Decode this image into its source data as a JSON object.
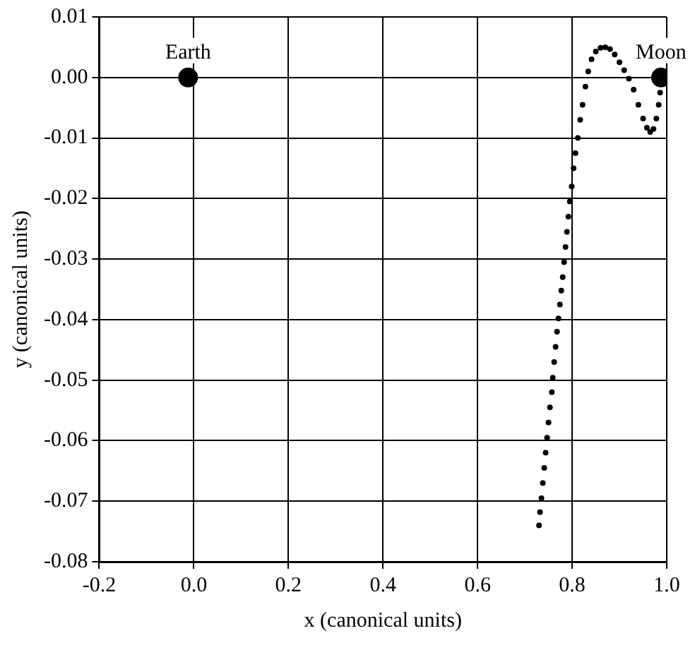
{
  "chart_data": {
    "type": "scatter",
    "xlabel": "x (canonical units)",
    "ylabel": "y (canonical units)",
    "xlim": [
      -0.2,
      1.0
    ],
    "xticks": [
      -0.2,
      {
        "value": 0,
        "label": "0.0"
      },
      0.2,
      0.4,
      0.6,
      0.8,
      {
        "value": 1,
        "label": "1.0"
      }
    ],
    "ylim": [
      -0.08,
      0.01
    ],
    "yticks": [
      {
        "value": 0.01,
        "label": "0.01"
      },
      {
        "value": 0,
        "label": "0.00"
      },
      {
        "value": -0.01,
        "label": "-0.01"
      },
      {
        "value": -0.02,
        "label": "-0.02"
      },
      {
        "value": -0.03,
        "label": "-0.03"
      },
      {
        "value": -0.04,
        "label": "-0.04"
      },
      {
        "value": -0.05,
        "label": "-0.05"
      },
      {
        "value": -0.06,
        "label": "-0.06"
      },
      {
        "value": -0.07,
        "label": "-0.07"
      },
      {
        "value": -0.08,
        "label": "-0.08"
      }
    ],
    "grid": true,
    "legend": false,
    "marker": "circle",
    "series": [
      {
        "name": "Earth",
        "color": "#000000",
        "x": [
          -0.012
        ],
        "values": [
          0
        ]
      },
      {
        "name": "Moon",
        "color": "#000000",
        "x": [
          0.988
        ],
        "values": [
          0
        ]
      },
      {
        "color": "#000000",
        "x": [
          0.73,
          0.732,
          0.735,
          0.738,
          0.741,
          0.744,
          0.747,
          0.75,
          0.753,
          0.757,
          0.759,
          0.762,
          0.765,
          0.768,
          0.771,
          0.774,
          0.777,
          0.78,
          0.783,
          0.786,
          0.789,
          0.792,
          0.795,
          0.799,
          0.803,
          0.807,
          0.812,
          0.817,
          0.822,
          0.828,
          0.834,
          0.841,
          0.85,
          0.86,
          0.87,
          0.88,
          0.89,
          0.9,
          0.91,
          0.92,
          0.93,
          0.94,
          0.95,
          0.958,
          0.965,
          0.972,
          0.978,
          0.983,
          0.986
        ],
        "values": [
          -0.074,
          -0.0718,
          -0.0695,
          -0.067,
          -0.0645,
          -0.062,
          -0.0595,
          -0.057,
          -0.0545,
          -0.052,
          -0.0496,
          -0.047,
          -0.0445,
          -0.042,
          -0.0398,
          -0.0375,
          -0.0352,
          -0.033,
          -0.0305,
          -0.028,
          -0.0255,
          -0.023,
          -0.0205,
          -0.018,
          -0.015,
          -0.0125,
          -0.01,
          -0.007,
          -0.0045,
          -0.0015,
          0.001,
          0.003,
          0.0043,
          0.0049,
          0.005,
          0.0047,
          0.0038,
          0.0025,
          0.0012,
          -0.0002,
          -0.002,
          -0.0045,
          -0.0068,
          -0.0083,
          -0.009,
          -0.0085,
          -0.0068,
          -0.0045,
          -0.0025
        ]
      }
    ]
  }
}
